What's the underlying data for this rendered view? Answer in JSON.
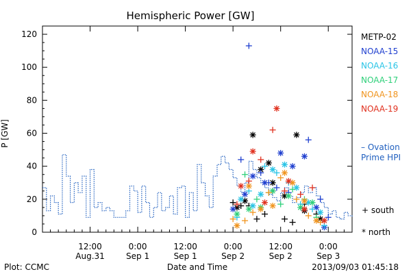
{
  "chart_data": {
    "type": "scatter",
    "title": "Hemispheric Power [GW]",
    "xlabel": "Date and Time",
    "ylabel": "P [GW]",
    "ylim": [
      0,
      125
    ],
    "yticks": [
      0,
      20,
      40,
      60,
      80,
      100,
      120
    ],
    "xlim_hours": [
      0,
      78
    ],
    "x_ticks": [
      {
        "hour": 12,
        "line1": "12:00",
        "line2": "Aug.31"
      },
      {
        "hour": 24,
        "line1": "0:00",
        "line2": "Sep 1"
      },
      {
        "hour": 36,
        "line1": "12:00",
        "line2": "Sep 1"
      },
      {
        "hour": 48,
        "line1": "0:00",
        "line2": "Sep 2"
      },
      {
        "hour": 60,
        "line1": "12:00",
        "line2": "Sep 2"
      },
      {
        "hour": 72,
        "line1": "0:00",
        "line2": "Sep 3"
      }
    ],
    "legend_position": "right",
    "satellites": [
      {
        "name": "METP-02",
        "color": "#000000"
      },
      {
        "name": "NOAA-15",
        "color": "#1f3fcf"
      },
      {
        "name": "NOAA-16",
        "color": "#29c4e6"
      },
      {
        "name": "NOAA-17",
        "color": "#2fd07a"
      },
      {
        "name": "NOAA-18",
        "color": "#f0941e"
      },
      {
        "name": "NOAA-19",
        "color": "#e0301e"
      }
    ],
    "ovation_label_1": "– Ovation",
    "ovation_label_2": "Prime HPI",
    "ovation_color": "#1f5fbf",
    "symbol_south_label": "+ south",
    "symbol_north_label": "* north",
    "ovation": [
      [
        0,
        27
      ],
      [
        1,
        13
      ],
      [
        2,
        22
      ],
      [
        3,
        18
      ],
      [
        4,
        11
      ],
      [
        5,
        47
      ],
      [
        6,
        34
      ],
      [
        7,
        18
      ],
      [
        8,
        30
      ],
      [
        9,
        24
      ],
      [
        10,
        34
      ],
      [
        11,
        9
      ],
      [
        12,
        38
      ],
      [
        13,
        15
      ],
      [
        14,
        18
      ],
      [
        15,
        13
      ],
      [
        16,
        15
      ],
      [
        17,
        13
      ],
      [
        18,
        9
      ],
      [
        19,
        9
      ],
      [
        20,
        9
      ],
      [
        21,
        13
      ],
      [
        22,
        28
      ],
      [
        23,
        25
      ],
      [
        24,
        12
      ],
      [
        25,
        28
      ],
      [
        26,
        18
      ],
      [
        27,
        9
      ],
      [
        28,
        15
      ],
      [
        29,
        24
      ],
      [
        30,
        13
      ],
      [
        31,
        15
      ],
      [
        32,
        22
      ],
      [
        33,
        11
      ],
      [
        34,
        27
      ],
      [
        35,
        28
      ],
      [
        36,
        9
      ],
      [
        37,
        24
      ],
      [
        38,
        13
      ],
      [
        39,
        41
      ],
      [
        40,
        30
      ],
      [
        41,
        22
      ],
      [
        42,
        15
      ],
      [
        43,
        34
      ],
      [
        44,
        41
      ],
      [
        45,
        46
      ],
      [
        46,
        42
      ],
      [
        47,
        38
      ],
      [
        48,
        33
      ],
      [
        49,
        28
      ],
      [
        50,
        24
      ],
      [
        51,
        30
      ],
      [
        52,
        43
      ],
      [
        53,
        38
      ],
      [
        54,
        33
      ],
      [
        55,
        30
      ],
      [
        56,
        27
      ],
      [
        57,
        23
      ],
      [
        58,
        21
      ],
      [
        59,
        19
      ],
      [
        60,
        24
      ],
      [
        61,
        27
      ],
      [
        62,
        22
      ],
      [
        63,
        18
      ],
      [
        64,
        21
      ],
      [
        65,
        24
      ],
      [
        66,
        28
      ],
      [
        67,
        24
      ],
      [
        68,
        27
      ],
      [
        69,
        22
      ],
      [
        70,
        18
      ],
      [
        71,
        15
      ],
      [
        72,
        11
      ],
      [
        73,
        13
      ],
      [
        74,
        9
      ],
      [
        75,
        8
      ],
      [
        76,
        12
      ],
      [
        77,
        10
      ],
      [
        78,
        9
      ]
    ],
    "series": [
      {
        "name": "METP-02",
        "symbol": "plus",
        "points": [
          [
            48,
            18
          ],
          [
            50,
            16
          ],
          [
            52,
            16
          ],
          [
            54,
            8
          ],
          [
            56,
            11
          ],
          [
            58,
            25
          ],
          [
            61,
            8
          ],
          [
            63,
            6
          ],
          [
            66,
            17
          ],
          [
            69,
            11
          ]
        ]
      },
      {
        "name": "METP-02",
        "symbol": "star",
        "points": [
          [
            49,
            15
          ],
          [
            51,
            19
          ],
          [
            53,
            59
          ],
          [
            55,
            38
          ],
          [
            57,
            42
          ],
          [
            58,
            30
          ],
          [
            61,
            22
          ],
          [
            64,
            59
          ],
          [
            66,
            13
          ],
          [
            70,
            8
          ]
        ]
      },
      {
        "name": "NOAA-15",
        "symbol": "plus",
        "points": [
          [
            50,
            44
          ],
          [
            52,
            113
          ],
          [
            55,
            36
          ],
          [
            57,
            30
          ],
          [
            59,
            27
          ],
          [
            62,
            24
          ],
          [
            67,
            56
          ],
          [
            70,
            20
          ],
          [
            72,
            9
          ]
        ]
      },
      {
        "name": "NOAA-15",
        "symbol": "star",
        "points": [
          [
            48,
            14
          ],
          [
            51,
            23
          ],
          [
            53,
            34
          ],
          [
            56,
            30
          ],
          [
            60,
            48
          ],
          [
            63,
            40
          ],
          [
            66,
            46
          ],
          [
            69,
            15
          ],
          [
            71,
            3
          ]
        ]
      },
      {
        "name": "NOAA-16",
        "symbol": "plus",
        "points": [
          [
            49,
            9
          ],
          [
            52,
            25
          ],
          [
            56,
            40
          ],
          [
            59,
            36
          ],
          [
            62,
            30
          ],
          [
            65,
            17
          ],
          [
            68,
            14
          ],
          [
            71,
            4
          ]
        ]
      },
      {
        "name": "NOAA-16",
        "symbol": "star",
        "points": [
          [
            50,
            20
          ],
          [
            53,
            16
          ],
          [
            55,
            23
          ],
          [
            58,
            38
          ],
          [
            61,
            41
          ],
          [
            64,
            27
          ],
          [
            67,
            18
          ],
          [
            70,
            12
          ]
        ]
      },
      {
        "name": "NOAA-17",
        "symbol": "plus",
        "points": [
          [
            51,
            35
          ],
          [
            54,
            20
          ],
          [
            57,
            24
          ],
          [
            60,
            17
          ],
          [
            63,
            26
          ],
          [
            66,
            20
          ],
          [
            69,
            9
          ]
        ]
      },
      {
        "name": "NOAA-17",
        "symbol": "star",
        "points": [
          [
            49,
            11
          ],
          [
            52,
            14
          ],
          [
            55,
            15
          ],
          [
            58,
            25
          ],
          [
            62,
            22
          ],
          [
            65,
            15
          ],
          [
            68,
            18
          ]
        ]
      },
      {
        "name": "NOAA-18",
        "symbol": "plus",
        "points": [
          [
            48,
            8
          ],
          [
            51,
            7
          ],
          [
            53,
            12
          ],
          [
            57,
            24
          ],
          [
            60,
            33
          ],
          [
            64,
            20
          ],
          [
            67,
            10
          ],
          [
            70,
            6
          ]
        ]
      },
      {
        "name": "NOAA-18",
        "symbol": "star",
        "points": [
          [
            49,
            4
          ],
          [
            52,
            28
          ],
          [
            55,
            14
          ],
          [
            58,
            16
          ],
          [
            61,
            36
          ],
          [
            63,
            30
          ],
          [
            66,
            19
          ],
          [
            69,
            7
          ]
        ]
      },
      {
        "name": "NOAA-19",
        "symbol": "plus",
        "points": [
          [
            49,
            17
          ],
          [
            52,
            31
          ],
          [
            55,
            44
          ],
          [
            58,
            62
          ],
          [
            61,
            25
          ],
          [
            65,
            23
          ],
          [
            68,
            27
          ]
        ]
      },
      {
        "name": "NOAA-19",
        "symbol": "star",
        "points": [
          [
            50,
            28
          ],
          [
            53,
            49
          ],
          [
            56,
            18
          ],
          [
            59,
            75
          ],
          [
            62,
            31
          ],
          [
            66,
            14
          ],
          [
            71,
            7
          ]
        ]
      }
    ],
    "footer_left": "Plot: CCMC",
    "footer_right": "2013/09/03 01:45:18"
  }
}
